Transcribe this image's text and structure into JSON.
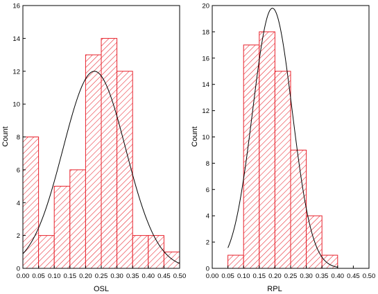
{
  "colors": {
    "bar_stroke": "#e8202a",
    "hatch": "#e8202a",
    "axis": "#000000",
    "curve": "#000000"
  },
  "chart_data": [
    {
      "type": "bar",
      "subtype": "histogram-with-normal-fit",
      "xlabel": "OSL",
      "ylabel": "Count",
      "xlim": [
        0.0,
        0.5
      ],
      "ylim": [
        0,
        16
      ],
      "xticks": [
        "0.00",
        "0.05",
        "0.10",
        "0.15",
        "0.20",
        "0.25",
        "0.30",
        "0.35",
        "0.40",
        "0.45",
        "0.50"
      ],
      "yticks": [
        "0",
        "2",
        "4",
        "6",
        "8",
        "10",
        "12",
        "14",
        "16"
      ],
      "bin_width": 0.05,
      "bins": [
        {
          "start": 0.0,
          "end": 0.05,
          "count": 8
        },
        {
          "start": 0.05,
          "end": 0.1,
          "count": 2
        },
        {
          "start": 0.1,
          "end": 0.15,
          "count": 5
        },
        {
          "start": 0.15,
          "end": 0.2,
          "count": 6
        },
        {
          "start": 0.2,
          "end": 0.25,
          "count": 13
        },
        {
          "start": 0.25,
          "end": 0.3,
          "count": 14
        },
        {
          "start": 0.3,
          "end": 0.35,
          "count": 12
        },
        {
          "start": 0.35,
          "end": 0.4,
          "count": 2
        },
        {
          "start": 0.4,
          "end": 0.45,
          "count": 2
        },
        {
          "start": 0.45,
          "end": 0.5,
          "count": 1
        }
      ],
      "fit": {
        "distribution": "normal",
        "mean": 0.228,
        "sd": 0.1,
        "peak": 12.0,
        "x_range": [
          0.0,
          0.5
        ]
      }
    },
    {
      "type": "bar",
      "subtype": "histogram-with-normal-fit",
      "xlabel": "RPL",
      "ylabel": "Count",
      "xlim": [
        0.0,
        0.5
      ],
      "ylim": [
        0,
        20
      ],
      "xticks": [
        "0.00",
        "0.05",
        "0.10",
        "0.15",
        "0.20",
        "0.25",
        "0.30",
        "0.35",
        "0.40",
        "0.45",
        "0.50"
      ],
      "yticks": [
        "0",
        "2",
        "4",
        "6",
        "8",
        "10",
        "12",
        "14",
        "16",
        "18",
        "20"
      ],
      "bin_width": 0.05,
      "bins": [
        {
          "start": 0.05,
          "end": 0.1,
          "count": 1
        },
        {
          "start": 0.1,
          "end": 0.15,
          "count": 17
        },
        {
          "start": 0.15,
          "end": 0.2,
          "count": 18
        },
        {
          "start": 0.2,
          "end": 0.25,
          "count": 15
        },
        {
          "start": 0.25,
          "end": 0.3,
          "count": 9
        },
        {
          "start": 0.3,
          "end": 0.35,
          "count": 4
        },
        {
          "start": 0.35,
          "end": 0.4,
          "count": 1
        }
      ],
      "fit": {
        "distribution": "normal",
        "mean": 0.192,
        "sd": 0.063,
        "peak": 19.8,
        "x_range": [
          0.05,
          0.4
        ]
      }
    }
  ]
}
